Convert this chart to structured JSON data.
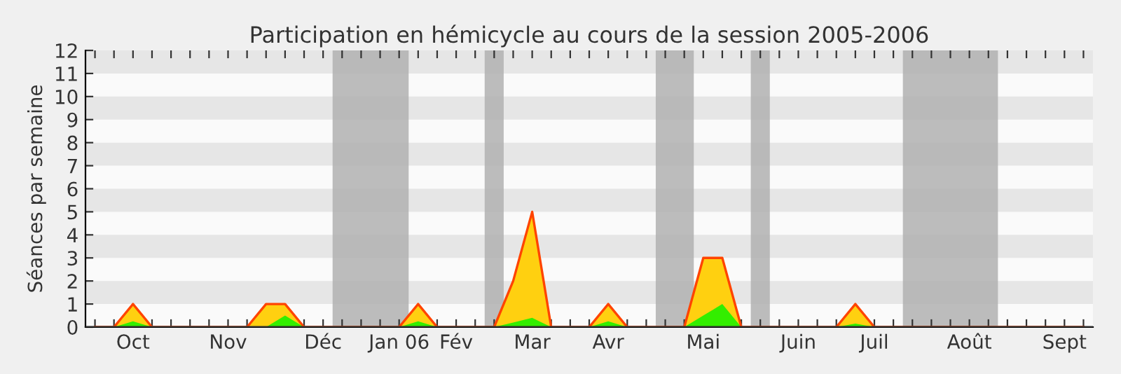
{
  "chart_data": {
    "type": "area",
    "title": "Participation en hémicycle au cours de la session 2005-2006",
    "ylabel": "Séances par semaine",
    "categories": [
      null,
      null,
      "Oct",
      null,
      null,
      null,
      null,
      "Nov",
      null,
      null,
      null,
      null,
      "Déc",
      null,
      null,
      null,
      "Jan 06",
      null,
      null,
      "Fév",
      null,
      null,
      null,
      "Mar",
      null,
      null,
      null,
      "Avr",
      null,
      null,
      null,
      null,
      "Mai",
      null,
      null,
      null,
      null,
      "Juin",
      null,
      null,
      null,
      "Juil",
      null,
      null,
      null,
      null,
      "Août",
      null,
      null,
      null,
      null,
      "Sept",
      null
    ],
    "series": [
      {
        "color": "#ffd010",
        "values": [
          0,
          0,
          1,
          0,
          0,
          0,
          0,
          0,
          0,
          1,
          1,
          0,
          0,
          0,
          0,
          0,
          0,
          1,
          0,
          0,
          0,
          0,
          2,
          5,
          0,
          0,
          0,
          1,
          0,
          0,
          0,
          0,
          3,
          3,
          0,
          0,
          0,
          0,
          0,
          0,
          1,
          0,
          0,
          0,
          0,
          0,
          0,
          0,
          0,
          0,
          0,
          0,
          0
        ]
      },
      {
        "color": "#33ee00",
        "values": [
          0,
          0,
          0.25,
          0,
          0,
          0,
          0,
          0,
          0,
          0,
          0.5,
          0,
          0,
          0,
          0,
          0,
          0,
          0.25,
          0,
          0,
          0,
          0,
          0.2,
          0.4,
          0,
          0,
          0,
          0.25,
          0,
          0,
          0,
          0,
          0.5,
          1,
          0,
          0,
          0,
          0,
          0,
          0,
          0.15,
          0,
          0,
          0,
          0,
          0,
          0,
          0,
          0,
          0,
          0,
          0,
          0
        ]
      }
    ],
    "ylim": [
      0,
      12
    ],
    "yticks": [
      0,
      1,
      2,
      3,
      4,
      5,
      6,
      7,
      8,
      9,
      10,
      11,
      12
    ],
    "legend": false
  }
}
